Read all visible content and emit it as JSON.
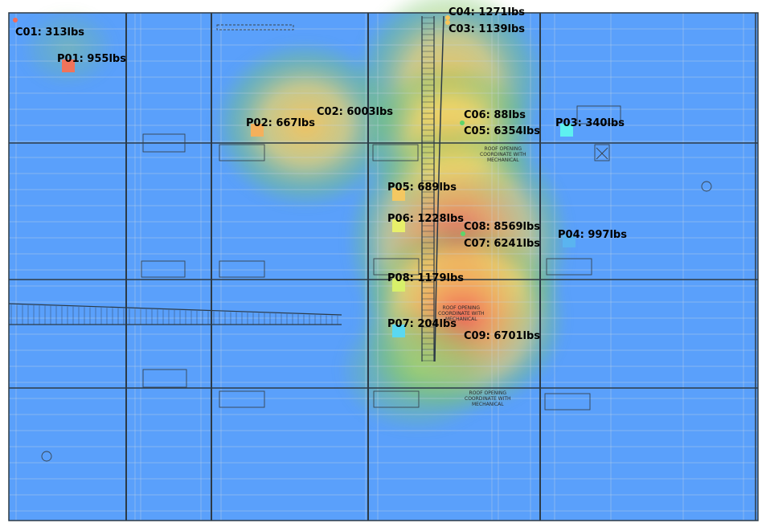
{
  "colors": {
    "floor": "#5aa0fb",
    "heat_low": "#7cc56a",
    "heat_mid": "#f4d35e",
    "heat_high": "#f26b5a",
    "line": "#3b4a5a"
  },
  "roof_notes": [
    "ROOF OPENING",
    "COORDINATE WITH",
    "MECHANICAL"
  ],
  "columns": [
    {
      "id": "c01",
      "label": "C01: 313lbs",
      "weight": 313,
      "color": "#f26b5a"
    },
    {
      "id": "c02",
      "label": "C02: 6003lbs",
      "weight": 6003,
      "color": "#f7c55a"
    },
    {
      "id": "c03",
      "label": "C03: 1139lbs",
      "weight": 1139,
      "color": "#f7c55a"
    },
    {
      "id": "c04",
      "label": "C04: 1271lbs",
      "weight": 1271,
      "color": "#f7c55a"
    },
    {
      "id": "c05",
      "label": "C05: 6354lbs",
      "weight": 6354,
      "color": "#f7c55a"
    },
    {
      "id": "c06",
      "label": "C06: 88lbs",
      "weight": 88,
      "color": "#5fd46b"
    },
    {
      "id": "c07",
      "label": "C07: 6241lbs",
      "weight": 6241,
      "color": "#f26b5a"
    },
    {
      "id": "c08",
      "label": "C08: 8569lbs",
      "weight": 8569,
      "color": "#5fd46b"
    },
    {
      "id": "c09",
      "label": "C09: 6701lbs",
      "weight": 6701,
      "color": "#f26b5a"
    }
  ],
  "points": [
    {
      "id": "p01",
      "label": "P01: 955lbs",
      "weight": 955,
      "color": "#f0735a"
    },
    {
      "id": "p02",
      "label": "P02: 667lbs",
      "weight": 667,
      "color": "#f4b05c"
    },
    {
      "id": "p03",
      "label": "P03: 340lbs",
      "weight": 340,
      "color": "#5ef0f0"
    },
    {
      "id": "p04",
      "label": "P04: 997lbs",
      "weight": 997,
      "color": "#5ab4f0"
    },
    {
      "id": "p05",
      "label": "P05: 689lbs",
      "weight": 689,
      "color": "#f4c862"
    },
    {
      "id": "p06",
      "label": "P06: 1228lbs",
      "weight": 1228,
      "color": "#e8f06a"
    },
    {
      "id": "p07",
      "label": "P07: 204lbs",
      "weight": 204,
      "color": "#5ad8f0"
    },
    {
      "id": "p08",
      "label": "P08: 1179lbs",
      "weight": 1179,
      "color": "#d8f06a"
    }
  ]
}
